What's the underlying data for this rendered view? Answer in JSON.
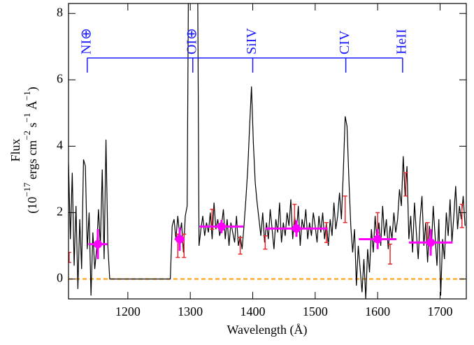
{
  "chart_data": {
    "type": "line",
    "xlabel": "Wavelength (Å)",
    "ylabel": {
      "line1": "Flux",
      "line2": [
        {
          "text": "(10"
        },
        {
          "text": "−17",
          "sup": true
        },
        {
          "text": " ergs cm"
        },
        {
          "text": "−2",
          "sup": true
        },
        {
          "text": " s"
        },
        {
          "text": "−1",
          "sup": true
        },
        {
          "text": " Å"
        },
        {
          "text": "−1",
          "sup": true
        },
        {
          "text": ")"
        }
      ]
    },
    "xlim": [
      1105,
      1742
    ],
    "ylim": [
      -0.6,
      8.3
    ],
    "xticks": [
      1200,
      1300,
      1400,
      1500,
      1600,
      1700
    ],
    "yticks": [
      0,
      2,
      4,
      6,
      8
    ],
    "series": [
      {
        "color": "#000000",
        "x": [
          1105,
          1108,
          1111,
          1114,
          1117,
          1120,
          1123,
          1126,
          1129,
          1132,
          1135,
          1138,
          1141,
          1144,
          1147,
          1150,
          1153,
          1156,
          1159,
          1162,
          1165,
          1168,
          1171,
          1268,
          1271,
          1274,
          1277,
          1280,
          1283,
          1286,
          1289,
          1292,
          1295,
          1298,
          1311,
          1314,
          1317,
          1320,
          1323,
          1326,
          1329,
          1332,
          1335,
          1338,
          1341,
          1344,
          1347,
          1350,
          1353,
          1356,
          1359,
          1362,
          1365,
          1368,
          1371,
          1374,
          1377,
          1380,
          1383,
          1386,
          1389,
          1392,
          1395,
          1398,
          1401,
          1404,
          1407,
          1410,
          1413,
          1416,
          1419,
          1422,
          1425,
          1428,
          1431,
          1434,
          1437,
          1440,
          1443,
          1446,
          1449,
          1452,
          1455,
          1458,
          1461,
          1464,
          1467,
          1470,
          1473,
          1476,
          1479,
          1482,
          1485,
          1488,
          1491,
          1494,
          1497,
          1500,
          1503,
          1506,
          1509,
          1512,
          1515,
          1518,
          1521,
          1524,
          1527,
          1530,
          1533,
          1536,
          1539,
          1542,
          1545,
          1548,
          1551,
          1554,
          1557,
          1560,
          1563,
          1566,
          1569,
          1572,
          1575,
          1578,
          1581,
          1584,
          1587,
          1590,
          1593,
          1596,
          1599,
          1602,
          1605,
          1608,
          1611,
          1614,
          1617,
          1620,
          1623,
          1626,
          1629,
          1632,
          1635,
          1638,
          1641,
          1644,
          1647,
          1650,
          1653,
          1656,
          1659,
          1662,
          1665,
          1668,
          1671,
          1674,
          1677,
          1680,
          1683,
          1686,
          1689,
          1692,
          1695,
          1698,
          1701,
          1704,
          1707,
          1710,
          1713,
          1716,
          1719,
          1722,
          1725,
          1728,
          1731,
          1734,
          1737,
          1740
        ],
        "values": [
          3.5,
          1.2,
          3.2,
          0.4,
          2.2,
          -0.3,
          1.8,
          0.3,
          3.6,
          3.4,
          0.9,
          2.0,
          -0.5,
          1.4,
          0.3,
          0.9,
          2.1,
          1.0,
          3.3,
          0.6,
          4.2,
          1.0,
          0.0,
          0.0,
          1.6,
          1.8,
          1.2,
          1.9,
          1.3,
          1.7,
          0.8,
          1.9,
          2.2,
          12,
          12,
          1.0,
          1.5,
          1.9,
          1.3,
          1.7,
          1.4,
          2.0,
          1.2,
          2.3,
          1.5,
          1.8,
          1.3,
          1.6,
          2.1,
          1.2,
          1.8,
          1.0,
          1.7,
          1.4,
          1.1,
          1.9,
          1.0,
          1.3,
          0.9,
          1.6,
          2.4,
          3.3,
          4.6,
          5.8,
          4.1,
          2.9,
          2.3,
          1.8,
          1.3,
          2.0,
          1.1,
          1.7,
          1.2,
          2.1,
          1.5,
          0.9,
          1.8,
          1.4,
          2.3,
          1.1,
          1.7,
          1.3,
          2.0,
          1.6,
          2.4,
          1.2,
          1.9,
          1.4,
          2.2,
          1.0,
          1.8,
          1.5,
          2.1,
          1.2,
          1.7,
          1.3,
          2.0,
          1.6,
          1.1,
          1.9,
          1.4,
          2.0,
          1.2,
          1.7,
          1.0,
          1.8,
          1.3,
          2.3,
          1.5,
          1.9,
          2.6,
          1.8,
          3.2,
          4.9,
          4.6,
          3.0,
          1.6,
          0.8,
          1.5,
          -0.2,
          1.0,
          0.3,
          -0.4,
          0.6,
          -0.6,
          0.9,
          0.2,
          1.5,
          0.8,
          1.9,
          1.1,
          1.7,
          1.0,
          2.2,
          1.3,
          1.8,
          0.9,
          1.6,
          1.2,
          2.0,
          1.4,
          1.8,
          2.7,
          2.2,
          3.7,
          2.5,
          3.4,
          1.2,
          1.9,
          0.8,
          2.3,
          1.4,
          0.6,
          1.8,
          2.5,
          1.0,
          1.7,
          0.5,
          1.6,
          0.9,
          2.2,
          1.3,
          0.4,
          1.8,
          -0.5,
          1.2,
          0.6,
          2.0,
          1.3,
          2.4,
          1.1,
          1.9,
          2.8,
          1.5,
          2.2,
          1.8,
          2.5,
          1.6
        ]
      }
    ],
    "reference_line": {
      "value": 0,
      "color": "#ff9900"
    },
    "binned": {
      "color": "#ff00ff",
      "x": [
        1152,
        1283,
        1350,
        1470,
        1600,
        1685
      ],
      "xerr": [
        15,
        8,
        35,
        50,
        30,
        35
      ],
      "values": [
        1.05,
        1.2,
        1.58,
        1.52,
        1.2,
        1.1
      ],
      "yerr": [
        0.45,
        0.35,
        0.2,
        0.25,
        0.3,
        0.4
      ]
    },
    "errorbars": {
      "color": "#e8292b",
      "x": [
        1106,
        1280,
        1290,
        1335,
        1380,
        1420,
        1467,
        1518,
        1548,
        1600,
        1620,
        1645,
        1680,
        1735
      ],
      "values": [
        0.65,
        1.0,
        1.0,
        1.8,
        1.0,
        1.1,
        1.9,
        1.4,
        2.1,
        1.7,
        0.75,
        2.85,
        1.4,
        1.9
      ],
      "yerr": [
        0.15,
        0.35,
        0.35,
        0.3,
        0.25,
        0.2,
        0.35,
        0.3,
        0.4,
        0.3,
        0.3,
        0.35,
        0.3,
        0.35
      ]
    },
    "line_ids": {
      "color": "#1a1aff",
      "labels": [
        "NI⊕",
        "OI⊕",
        "SiIV",
        "CIV",
        "HeII"
      ],
      "x": [
        1135,
        1304,
        1400,
        1549,
        1640
      ]
    }
  }
}
